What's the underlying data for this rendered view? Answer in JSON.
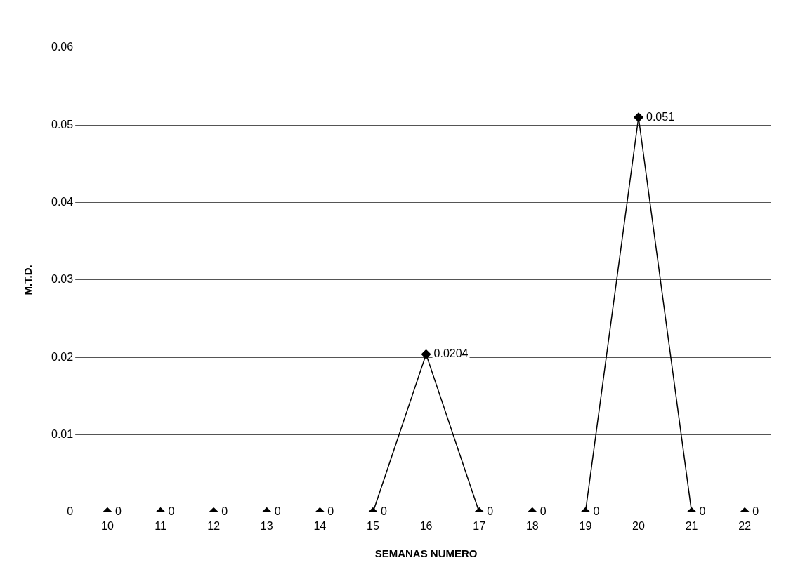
{
  "chart_data": {
    "type": "line",
    "xlabel": "SEMANAS NUMERO",
    "ylabel": "M.T.D.",
    "categories": [
      "10",
      "11",
      "12",
      "13",
      "14",
      "15",
      "16",
      "17",
      "18",
      "19",
      "20",
      "21",
      "22"
    ],
    "series": [
      {
        "color": "#000000",
        "values": [
          0,
          0,
          0,
          0,
          0,
          0,
          0.0204,
          0,
          0,
          0,
          0.051,
          0,
          0
        ]
      }
    ],
    "ylim": [
      0,
      0.06
    ],
    "yticks": [
      0,
      0.01,
      0.02,
      0.03,
      0.04,
      0.05,
      0.06
    ],
    "grid": "y",
    "legend": false,
    "marker": "diamond",
    "line_style": "solid",
    "data_labels": true
  }
}
